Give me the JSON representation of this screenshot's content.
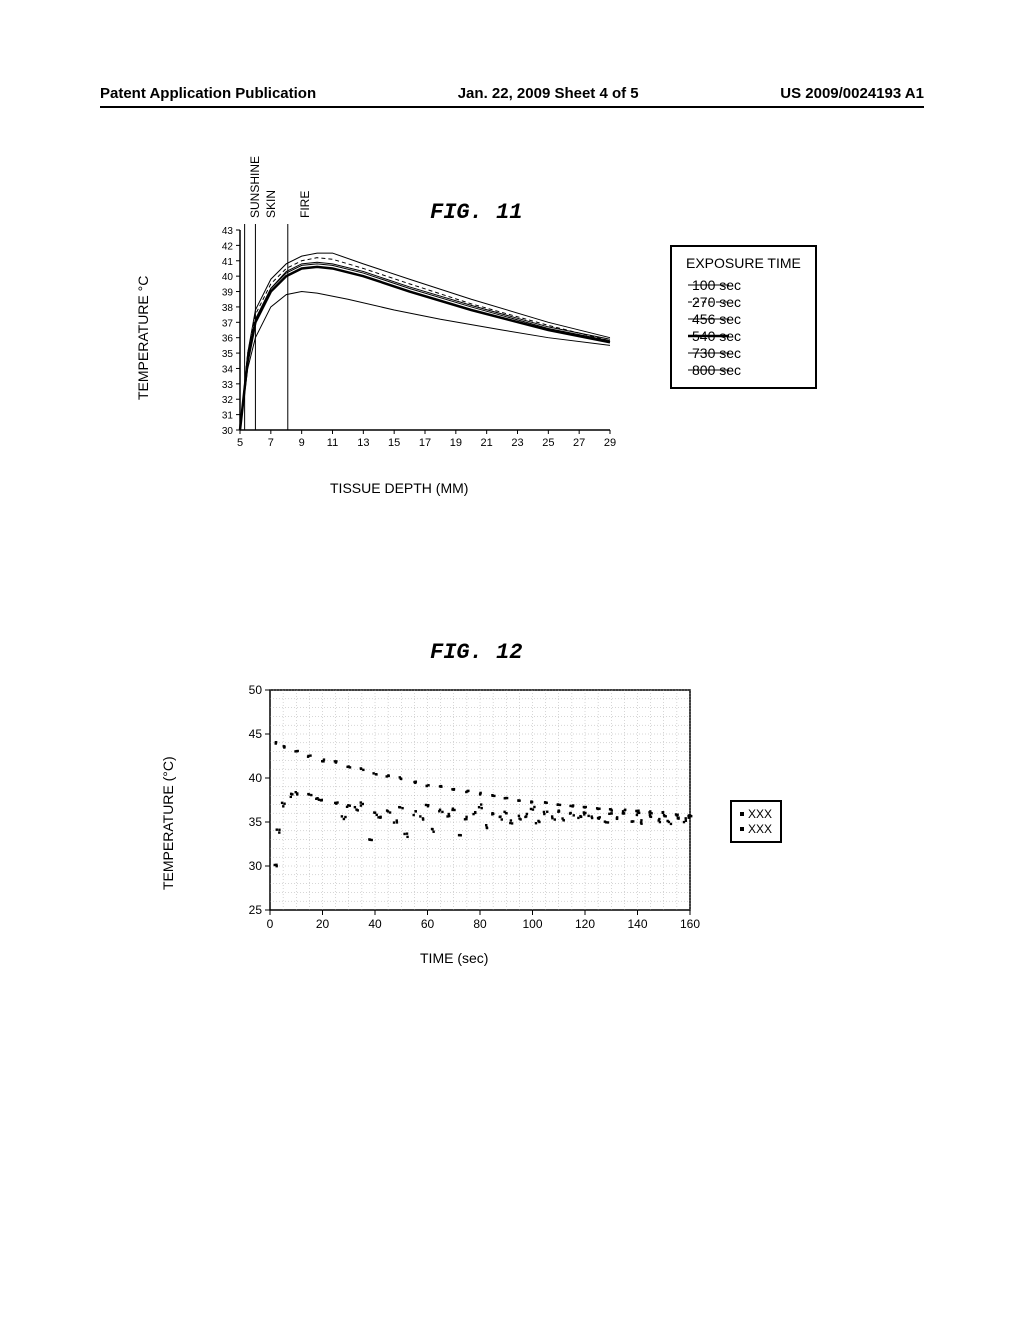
{
  "header": {
    "left": "Patent Application Publication",
    "middle": "Jan. 22, 2009  Sheet 4 of 5",
    "right": "US 2009/0024193 A1"
  },
  "fig11": {
    "title": "FIG.  11",
    "ylabel": "TEMPERATURE °C",
    "xlabel": "TISSUE DEPTH (MM)",
    "markers": {
      "sunshine": "SUNSHINE",
      "skin": "SKIN",
      "fire": "FIRE"
    },
    "legend_title": "EXPOSURE TIME",
    "legend_items": [
      {
        "label": "100 sec",
        "width": 1.0,
        "dash": "none"
      },
      {
        "label": "270 sec",
        "width": 1.0,
        "dash": "4,3"
      },
      {
        "label": "456 sec",
        "width": 1.0,
        "dash": "none"
      },
      {
        "label": "540 sec",
        "width": 2.5,
        "dash": "none"
      },
      {
        "label": "730 sec",
        "width": 1.0,
        "dash": "none"
      },
      {
        "label": "800 sec",
        "width": 1.0,
        "dash": "none"
      }
    ],
    "yticks": [
      "43",
      "42",
      "41",
      "40",
      "39",
      "38",
      "37",
      "36",
      "35",
      "34",
      "33",
      "32",
      "31",
      "30"
    ],
    "xticks": [
      "5",
      "7",
      "9",
      "11",
      "13",
      "15",
      "17",
      "19",
      "21",
      "23",
      "25",
      "27",
      "29"
    ],
    "ylim": [
      30,
      43
    ],
    "xlim": [
      5,
      29
    ],
    "curves": [
      {
        "width": 1.0,
        "dash": "none",
        "points": [
          [
            5,
            30
          ],
          [
            5.5,
            34
          ],
          [
            6,
            36
          ],
          [
            7,
            38
          ],
          [
            8,
            38.8
          ],
          [
            9,
            39
          ],
          [
            10,
            38.9
          ],
          [
            12,
            38.5
          ],
          [
            15,
            37.8
          ],
          [
            18,
            37.2
          ],
          [
            22,
            36.5
          ],
          [
            25,
            36
          ],
          [
            29,
            35.5
          ]
        ]
      },
      {
        "width": 1.0,
        "dash": "4,3",
        "points": [
          [
            5,
            30
          ],
          [
            5.5,
            35
          ],
          [
            6,
            37.5
          ],
          [
            7,
            39.5
          ],
          [
            8,
            40.5
          ],
          [
            9,
            41
          ],
          [
            10,
            41.2
          ],
          [
            11,
            41.1
          ],
          [
            13,
            40.5
          ],
          [
            16,
            39.5
          ],
          [
            20,
            38.2
          ],
          [
            25,
            36.8
          ],
          [
            29,
            35.8
          ]
        ]
      },
      {
        "width": 1.0,
        "dash": "none",
        "points": [
          [
            5,
            30
          ],
          [
            5.5,
            35
          ],
          [
            6,
            37.8
          ],
          [
            7,
            39.8
          ],
          [
            8,
            40.8
          ],
          [
            9,
            41.3
          ],
          [
            10,
            41.5
          ],
          [
            11,
            41.5
          ],
          [
            13,
            40.8
          ],
          [
            16,
            39.8
          ],
          [
            20,
            38.5
          ],
          [
            25,
            37
          ],
          [
            29,
            36
          ]
        ]
      },
      {
        "width": 2.5,
        "dash": "none",
        "points": [
          [
            5,
            30
          ],
          [
            5.5,
            34.5
          ],
          [
            6,
            37
          ],
          [
            7,
            39
          ],
          [
            8,
            40
          ],
          [
            9,
            40.5
          ],
          [
            10,
            40.6
          ],
          [
            11,
            40.5
          ],
          [
            13,
            40
          ],
          [
            16,
            39
          ],
          [
            20,
            37.8
          ],
          [
            25,
            36.5
          ],
          [
            29,
            35.7
          ]
        ]
      },
      {
        "width": 1.0,
        "dash": "none",
        "points": [
          [
            5,
            30
          ],
          [
            5.5,
            34.8
          ],
          [
            6,
            37.2
          ],
          [
            7,
            39.2
          ],
          [
            8,
            40.2
          ],
          [
            9,
            40.7
          ],
          [
            10,
            40.8
          ],
          [
            11,
            40.7
          ],
          [
            13,
            40.2
          ],
          [
            16,
            39.2
          ],
          [
            20,
            38
          ],
          [
            25,
            36.6
          ],
          [
            29,
            35.8
          ]
        ]
      },
      {
        "width": 1.0,
        "dash": "none",
        "points": [
          [
            5,
            30
          ],
          [
            5.5,
            34.8
          ],
          [
            6,
            37.2
          ],
          [
            7,
            39.2
          ],
          [
            8,
            40.3
          ],
          [
            9,
            40.8
          ],
          [
            10,
            40.9
          ],
          [
            11,
            40.8
          ],
          [
            13,
            40.3
          ],
          [
            16,
            39.3
          ],
          [
            20,
            38.1
          ],
          [
            25,
            36.7
          ],
          [
            29,
            35.9
          ]
        ]
      }
    ]
  },
  "fig12": {
    "title": "FIG.  12",
    "ylabel": "TEMPERATURE (°C)",
    "xlabel": "TIME (sec)",
    "yticks": [
      "25",
      "30",
      "35",
      "40",
      "45",
      "50"
    ],
    "xticks": [
      "0",
      "20",
      "40",
      "60",
      "80",
      "100",
      "120",
      "140",
      "160"
    ],
    "ylim": [
      25,
      50
    ],
    "xlim": [
      0,
      160
    ],
    "legend_items": [
      {
        "label": "XXX"
      },
      {
        "label": "XXX"
      }
    ],
    "series1_points": [
      [
        2,
        44
      ],
      [
        5,
        43.5
      ],
      [
        10,
        43
      ],
      [
        15,
        42.5
      ],
      [
        20,
        42
      ],
      [
        25,
        41.8
      ],
      [
        30,
        41.3
      ],
      [
        35,
        41
      ],
      [
        40,
        40.5
      ],
      [
        45,
        40.2
      ],
      [
        50,
        40
      ],
      [
        55,
        39.5
      ],
      [
        60,
        39.2
      ],
      [
        65,
        39
      ],
      [
        70,
        38.7
      ],
      [
        75,
        38.5
      ],
      [
        80,
        38.2
      ],
      [
        85,
        38
      ],
      [
        90,
        37.8
      ],
      [
        95,
        37.5
      ],
      [
        100,
        37.3
      ],
      [
        105,
        37.2
      ],
      [
        110,
        37
      ],
      [
        115,
        36.8
      ],
      [
        120,
        36.7
      ],
      [
        125,
        36.5
      ],
      [
        130,
        36.4
      ],
      [
        135,
        36.3
      ],
      [
        140,
        36.2
      ],
      [
        145,
        36.1
      ],
      [
        150,
        36
      ],
      [
        155,
        35.8
      ],
      [
        160,
        35.7
      ]
    ],
    "series2_points": [
      [
        2,
        30
      ],
      [
        3,
        34
      ],
      [
        5,
        37
      ],
      [
        8,
        38
      ],
      [
        10,
        38.2
      ],
      [
        15,
        38
      ],
      [
        18,
        37.7
      ],
      [
        20,
        37.5
      ],
      [
        25,
        37.2
      ],
      [
        28,
        35.5
      ],
      [
        30,
        36.8
      ],
      [
        33,
        36.5
      ],
      [
        35,
        37
      ],
      [
        38,
        33
      ],
      [
        40,
        36
      ],
      [
        42,
        35.5
      ],
      [
        45,
        36.2
      ],
      [
        48,
        35
      ],
      [
        50,
        36.5
      ],
      [
        52,
        33.5
      ],
      [
        55,
        36
      ],
      [
        58,
        35.5
      ],
      [
        60,
        37
      ],
      [
        62,
        34
      ],
      [
        65,
        36.2
      ],
      [
        68,
        35.8
      ],
      [
        70,
        36.5
      ],
      [
        72,
        33.5
      ],
      [
        75,
        35.5
      ],
      [
        78,
        36
      ],
      [
        80,
        36.8
      ],
      [
        82,
        34.5
      ],
      [
        85,
        35.8
      ],
      [
        88,
        35.5
      ],
      [
        90,
        36.2
      ],
      [
        92,
        35
      ],
      [
        95,
        35.5
      ],
      [
        98,
        35.8
      ],
      [
        100,
        36.5
      ],
      [
        102,
        35
      ],
      [
        105,
        36
      ],
      [
        108,
        35.5
      ],
      [
        110,
        36.2
      ],
      [
        112,
        35.2
      ],
      [
        115,
        35.8
      ],
      [
        118,
        35.5
      ],
      [
        120,
        36
      ],
      [
        122,
        35.5
      ],
      [
        125,
        35.6
      ],
      [
        128,
        35
      ],
      [
        130,
        36
      ],
      [
        132,
        35.5
      ],
      [
        135,
        35.8
      ],
      [
        138,
        35.2
      ],
      [
        140,
        36
      ],
      [
        142,
        35
      ],
      [
        145,
        35.7
      ],
      [
        148,
        35.2
      ],
      [
        150,
        35.8
      ],
      [
        152,
        35
      ],
      [
        155,
        35.5
      ],
      [
        158,
        35.2
      ],
      [
        160,
        35.6
      ]
    ]
  },
  "colors": {
    "line": "#000000",
    "bg": "#ffffff",
    "grid": "#888888"
  }
}
